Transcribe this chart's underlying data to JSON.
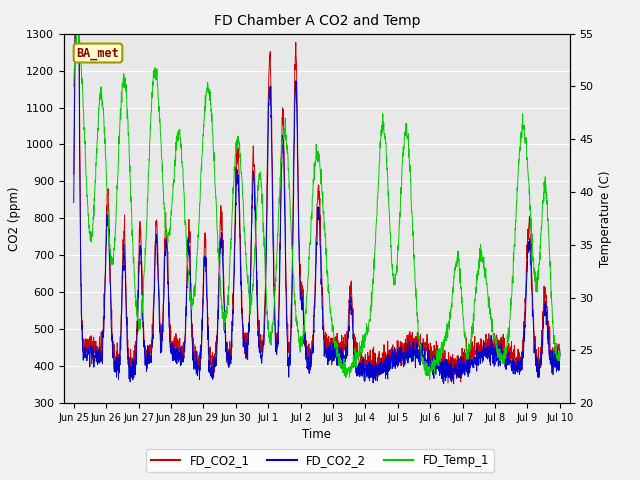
{
  "title": "FD Chamber A CO2 and Temp",
  "xlabel": "Time",
  "ylabel_left": "CO2 (ppm)",
  "ylabel_right": "Temperature (C)",
  "ylim_left": [
    300,
    1300
  ],
  "ylim_right": [
    20,
    55
  ],
  "yticks_left": [
    300,
    400,
    500,
    600,
    700,
    800,
    900,
    1000,
    1100,
    1200,
    1300
  ],
  "yticks_right": [
    20,
    25,
    30,
    35,
    40,
    45,
    50,
    55
  ],
  "legend_entries": [
    "FD_CO2_1",
    "FD_CO2_2",
    "FD_Temp_1"
  ],
  "legend_colors": [
    "#cc0000",
    "#0000cc",
    "#00cc00"
  ],
  "box_label": "BA_met",
  "box_facecolor": "#ffffcc",
  "box_edgecolor": "#999900",
  "box_textcolor": "#880000",
  "plot_bg_color": "#e8e8e8",
  "fig_bg_color": "#f2f2f2",
  "line_color_co2_1": "#cc0000",
  "line_color_co2_2": "#0000cc",
  "line_color_temp": "#00cc00",
  "grid_color": "#ffffff",
  "xtick_labels": [
    "Jun 25",
    "Jun 26",
    "Jun 27",
    "Jun 28",
    "Jun 29",
    "Jun 30",
    "Jul 1",
    "Jul 2",
    "Jul 3",
    "Jul 4",
    "Jul 5",
    "Jul 6",
    "Jul 7",
    "Jul 8",
    "Jul 9",
    "Jul 10"
  ]
}
